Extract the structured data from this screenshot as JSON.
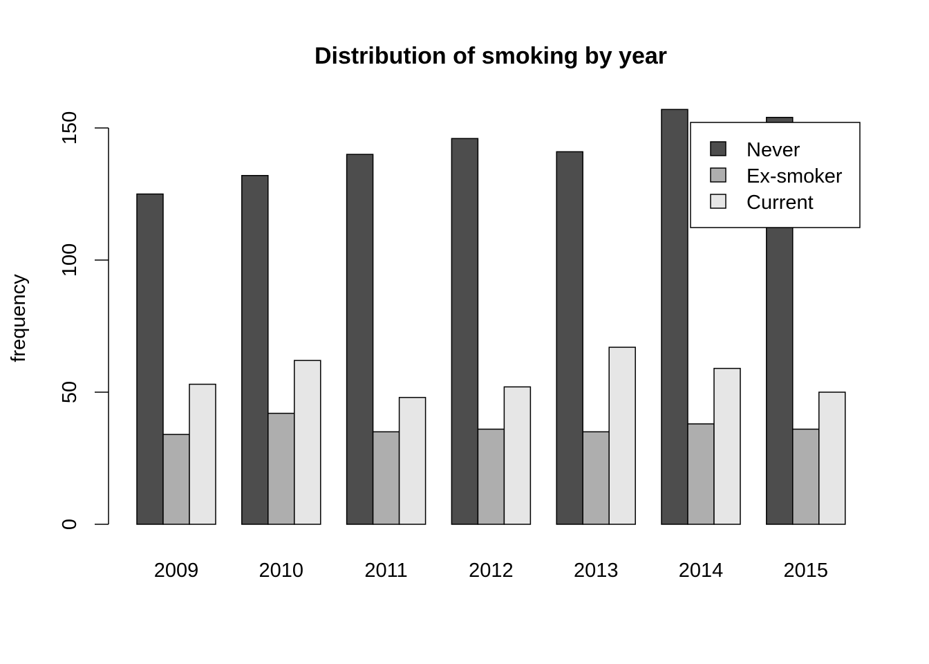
{
  "chart_data": {
    "type": "bar",
    "title": "Distribution of smoking by year",
    "xlabel": "",
    "ylabel": "frequency",
    "categories": [
      "2009",
      "2010",
      "2011",
      "2012",
      "2013",
      "2014",
      "2015"
    ],
    "series": [
      {
        "name": "Never",
        "color": "#4d4d4d",
        "values": [
          125,
          132,
          140,
          146,
          141,
          157,
          154
        ]
      },
      {
        "name": "Ex-smoker",
        "color": "#aeaeae",
        "values": [
          34,
          42,
          35,
          36,
          35,
          38,
          36
        ]
      },
      {
        "name": "Current",
        "color": "#e6e6e6",
        "values": [
          53,
          62,
          48,
          52,
          67,
          59,
          50
        ]
      }
    ],
    "ylim": [
      0,
      150
    ],
    "yticks": [
      0,
      50,
      100,
      150
    ],
    "ytick_labels": [
      "0",
      "50",
      "100",
      "150"
    ],
    "grid": false,
    "legend_position": "top-right",
    "bar_layout": "grouped"
  }
}
